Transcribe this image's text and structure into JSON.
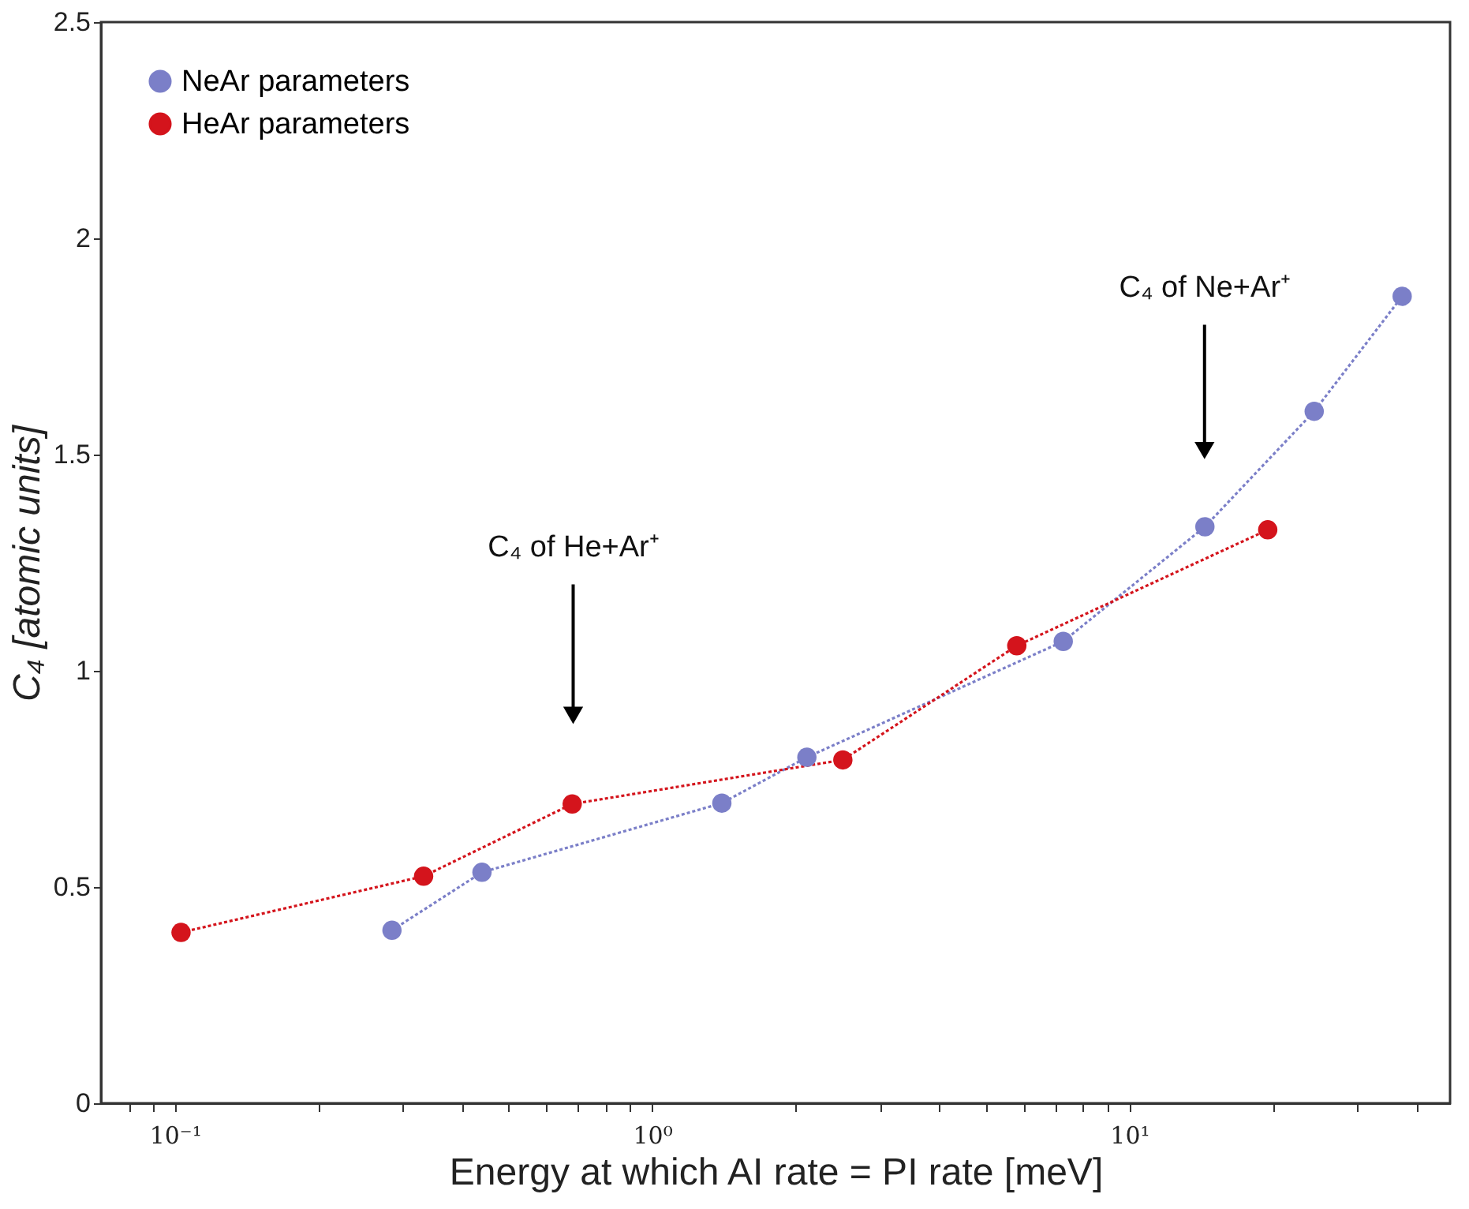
{
  "chart_data": {
    "type": "line",
    "xlabel": "Energy at which AI rate = PI rate [meV]",
    "ylabel": "C₄ [atomic units]",
    "log": "x",
    "grid": false,
    "legend": "top left",
    "marker": "circle",
    "line_style": "dotted",
    "xlim": [
      0.07,
      47
    ],
    "ylim": [
      0,
      2.5
    ],
    "xticks": [
      {
        "value": 0.08,
        "label": null
      },
      {
        "value": 0.09,
        "label": null
      },
      {
        "value": 0.1,
        "label": "10⁻¹"
      },
      {
        "value": 0.2,
        "label": null
      },
      {
        "value": 0.3,
        "label": null
      },
      {
        "value": 0.4,
        "label": null
      },
      {
        "value": 0.5,
        "label": null
      },
      {
        "value": 0.6,
        "label": null
      },
      {
        "value": 0.7,
        "label": null
      },
      {
        "value": 0.8,
        "label": null
      },
      {
        "value": 0.9,
        "label": null
      },
      {
        "value": 1,
        "label": "10⁰"
      },
      {
        "value": 2,
        "label": null
      },
      {
        "value": 3,
        "label": null
      },
      {
        "value": 4,
        "label": null
      },
      {
        "value": 5,
        "label": null
      },
      {
        "value": 6,
        "label": null
      },
      {
        "value": 7,
        "label": null
      },
      {
        "value": 8,
        "label": null
      },
      {
        "value": 9,
        "label": null
      },
      {
        "value": 10,
        "label": "10¹"
      },
      {
        "value": 20,
        "label": null
      },
      {
        "value": 30,
        "label": null
      },
      {
        "value": 40,
        "label": null
      }
    ],
    "yticks": [
      0,
      0.5,
      1,
      1.5,
      2,
      2.5
    ],
    "series": [
      {
        "name": "NeAr parameters",
        "color": "#7b7fc8",
        "x": [
          0.285,
          0.44,
          1.4,
          2.11,
          7.27,
          14.4,
          24.4,
          37.3
        ],
        "values": [
          0.4,
          0.534,
          0.694,
          0.8,
          1.068,
          1.333,
          1.6,
          1.866
        ]
      },
      {
        "name": "HeAr parameters",
        "color": "#d4141c",
        "x": [
          0.103,
          0.332,
          0.68,
          2.51,
          5.81,
          19.5
        ],
        "values": [
          0.395,
          0.525,
          0.692,
          0.794,
          1.058,
          1.326
        ]
      }
    ],
    "annotations": [
      "C₄ of He+Ar⁺",
      "C₄ of Ne+Ar⁺"
    ]
  }
}
